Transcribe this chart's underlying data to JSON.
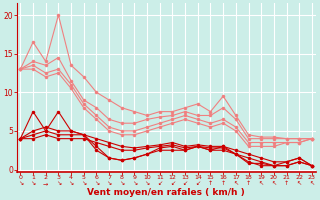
{
  "xlabel": "Vent moyen/en rafales ( km/h )",
  "background_color": "#cceee8",
  "grid_color": "#ffffff",
  "x_ticks": [
    0,
    1,
    2,
    3,
    4,
    5,
    6,
    7,
    8,
    9,
    10,
    11,
    12,
    13,
    14,
    15,
    16,
    17,
    18,
    19,
    20,
    21,
    22,
    23
  ],
  "ylim": [
    -0.3,
    21.5
  ],
  "xlim": [
    -0.3,
    23.3
  ],
  "yticks": [
    0,
    5,
    10,
    15,
    20
  ],
  "lines_light": [
    {
      "x": [
        0,
        1,
        2,
        3,
        4,
        5,
        6,
        7,
        8,
        9,
        10,
        11,
        12,
        13,
        14,
        15,
        16,
        17,
        18,
        19,
        20,
        21,
        22,
        23
      ],
      "y": [
        13,
        16.5,
        14,
        20,
        13.5,
        12,
        10,
        9,
        8,
        7.5,
        7,
        7.5,
        7.5,
        8,
        8.5,
        7.5,
        9.5,
        7,
        4.5,
        4.2,
        4.2,
        4,
        4,
        4
      ],
      "color": "#f08080",
      "lw": 0.8,
      "marker": "o",
      "ms": 1.5
    },
    {
      "x": [
        0,
        1,
        2,
        3,
        4,
        5,
        6,
        7,
        8,
        9,
        10,
        11,
        12,
        13,
        14,
        15,
        16,
        17,
        18,
        19,
        20,
        21,
        22,
        23
      ],
      "y": [
        13,
        14,
        13.5,
        14.5,
        11.5,
        9,
        8,
        6.5,
        6,
        6,
        6.5,
        6.8,
        7,
        7.5,
        7,
        7,
        8,
        6.5,
        4,
        4,
        4,
        4,
        4,
        4
      ],
      "color": "#f08080",
      "lw": 0.8,
      "marker": "o",
      "ms": 1.5
    },
    {
      "x": [
        0,
        1,
        2,
        3,
        4,
        5,
        6,
        7,
        8,
        9,
        10,
        11,
        12,
        13,
        14,
        15,
        16,
        17,
        18,
        19,
        20,
        21,
        22,
        23
      ],
      "y": [
        13,
        13.5,
        12.5,
        13,
        11,
        8.5,
        7,
        5.5,
        5,
        5,
        5.5,
        6,
        6.5,
        7,
        6.5,
        6,
        6.5,
        5.5,
        3.5,
        3.5,
        3.5,
        3.5,
        3.5,
        4
      ],
      "color": "#f08080",
      "lw": 0.8,
      "marker": "o",
      "ms": 1.5
    },
    {
      "x": [
        0,
        1,
        2,
        3,
        4,
        5,
        6,
        7,
        8,
        9,
        10,
        11,
        12,
        13,
        14,
        15,
        16,
        17,
        18,
        19,
        20,
        21,
        22,
        23
      ],
      "y": [
        13,
        13,
        12,
        12.5,
        10.5,
        8,
        6.5,
        5,
        4.5,
        4.5,
        5,
        5.5,
        6,
        6.5,
        6,
        5.5,
        6,
        5,
        3,
        3,
        3,
        3.5,
        3.5,
        4
      ],
      "color": "#f08080",
      "lw": 0.8,
      "marker": "o",
      "ms": 1.5
    }
  ],
  "lines_dark": [
    {
      "x": [
        0,
        1,
        2,
        3,
        4,
        5,
        6,
        7,
        8,
        9,
        10,
        11,
        12,
        13,
        14,
        15,
        16,
        17,
        18,
        19,
        20,
        21,
        22,
        23
      ],
      "y": [
        4,
        7.5,
        5,
        7.5,
        5,
        4.5,
        3,
        1.5,
        1.2,
        1.5,
        2,
        2.5,
        2.5,
        2.5,
        3,
        2.5,
        3,
        2,
        0.8,
        0.8,
        0.5,
        0.5,
        1,
        0.5
      ],
      "color": "#cc0000",
      "lw": 0.8,
      "marker": "o",
      "ms": 1.5
    },
    {
      "x": [
        0,
        1,
        2,
        3,
        4,
        5,
        6,
        7,
        8,
        9,
        10,
        11,
        12,
        13,
        14,
        15,
        16,
        17,
        18,
        19,
        20,
        21,
        22,
        23
      ],
      "y": [
        4,
        5,
        5.5,
        5,
        5,
        4.5,
        2.5,
        1.5,
        1.2,
        1.5,
        2,
        2.8,
        3,
        2.5,
        3,
        2.5,
        2.5,
        2,
        1,
        0.5,
        0.5,
        1,
        1.5,
        0.5
      ],
      "color": "#cc0000",
      "lw": 0.8,
      "marker": "o",
      "ms": 1.5
    },
    {
      "x": [
        0,
        1,
        2,
        3,
        4,
        5,
        6,
        7,
        8,
        9,
        10,
        11,
        12,
        13,
        14,
        15,
        16,
        17,
        18,
        19,
        20,
        21,
        22,
        23
      ],
      "y": [
        4,
        4.5,
        5,
        4.5,
        4.5,
        4.5,
        4,
        3.5,
        3,
        2.8,
        3,
        3.2,
        3.5,
        3,
        3.2,
        3,
        3,
        2.5,
        2,
        1.5,
        1,
        1,
        1.5,
        0.5
      ],
      "color": "#cc0000",
      "lw": 0.8,
      "marker": "o",
      "ms": 1.5
    },
    {
      "x": [
        0,
        1,
        2,
        3,
        4,
        5,
        6,
        7,
        8,
        9,
        10,
        11,
        12,
        13,
        14,
        15,
        16,
        17,
        18,
        19,
        20,
        21,
        22,
        23
      ],
      "y": [
        4,
        4,
        4.5,
        4,
        4,
        4,
        3.5,
        3,
        2.5,
        2.5,
        2.8,
        3,
        3.2,
        2.8,
        3,
        2.8,
        2.8,
        2,
        1.5,
        1,
        0.5,
        0.5,
        1,
        0.5
      ],
      "color": "#cc0000",
      "lw": 0.8,
      "marker": "o",
      "ms": 1.5
    }
  ],
  "tick_label_symbols": [
    "↘",
    "↘",
    "→",
    "↘",
    "↘",
    "↘",
    "↘",
    "↘",
    "↘",
    "↘",
    "↘",
    "↙",
    "↙",
    "↙",
    "↙",
    "↑",
    "↑",
    "↖",
    "↑",
    "↖",
    "↖",
    "↑",
    "↖",
    "↖"
  ],
  "tick_color": "#cc0000",
  "axis_label_color": "#cc0000"
}
